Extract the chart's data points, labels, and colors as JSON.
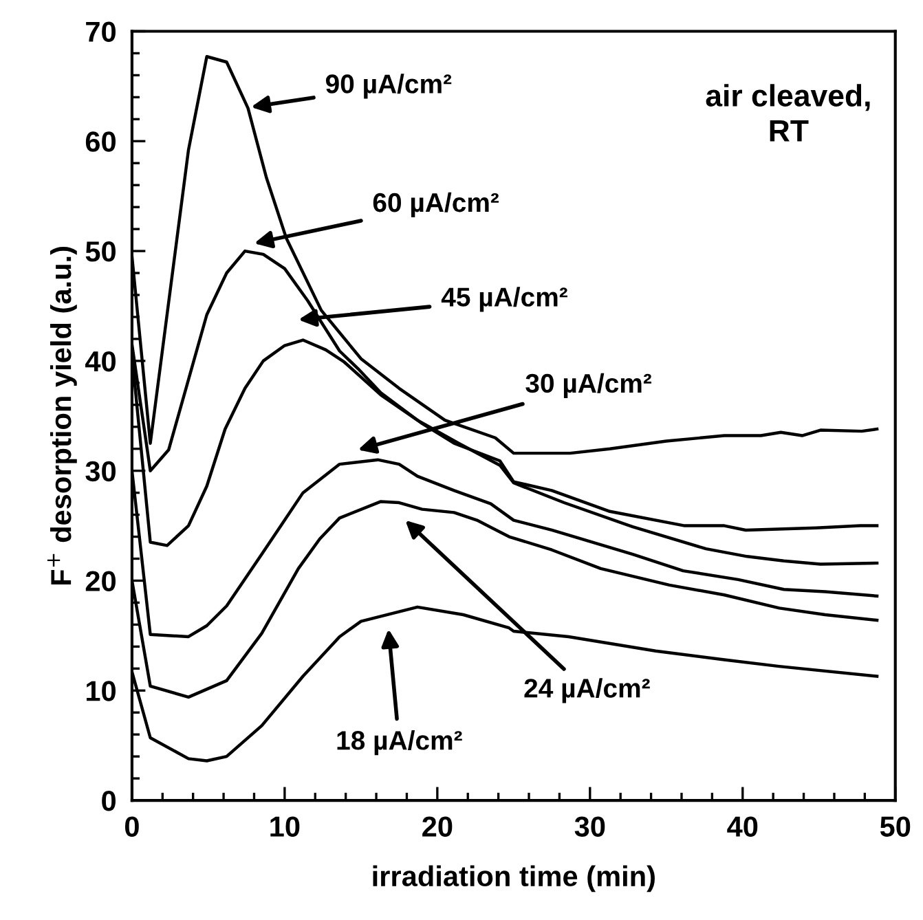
{
  "chart_data": {
    "type": "line",
    "xlabel": "irradiation time (min)",
    "ylabel": "F$^{+}$ desorption yield (a.u.)",
    "xlim": [
      0,
      50
    ],
    "ylim": [
      0,
      70
    ],
    "xticks": [
      0,
      10,
      20,
      30,
      40,
      50
    ],
    "yticks": [
      0,
      10,
      20,
      30,
      40,
      50,
      60,
      70
    ],
    "grid": false,
    "legend": false,
    "marker": "none",
    "line_style": "solid",
    "series": [
      {
        "color": "#000000",
        "x": [
          0,
          1.2,
          3.7,
          4.9,
          6.2,
          7.6,
          8.8,
          10.1,
          12.4,
          15,
          17.5,
          20.5,
          23.8,
          25,
          28.7,
          31.3,
          35,
          38.8,
          41.2,
          42.5,
          43.9,
          45.1,
          47.8,
          48.8
        ],
        "values": [
          49.5,
          32.5,
          59.2,
          67.7,
          67.2,
          63,
          56.7,
          51.2,
          44.6,
          40.2,
          37.5,
          34.6,
          33,
          31.6,
          31.6,
          32,
          32.7,
          33.2,
          33.2,
          33.5,
          33.2,
          33.7,
          33.6,
          33.8
        ]
      },
      {
        "color": "#000000",
        "x": [
          0,
          1.2,
          2.4,
          4.9,
          6.2,
          7.4,
          8.6,
          10,
          11.5,
          13.6,
          14.8,
          16.3,
          19,
          21.1,
          24.1,
          25,
          27.5,
          31.3,
          36.2,
          38.8,
          40.2,
          44.8,
          47.7,
          48.8
        ],
        "values": [
          41.5,
          30,
          31.9,
          44.2,
          48,
          50,
          49.7,
          48.4,
          45.5,
          40.9,
          39.3,
          37.1,
          34.3,
          32.5,
          30.9,
          29,
          28.2,
          26.3,
          25,
          25,
          24.6,
          24.8,
          25,
          25
        ]
      },
      {
        "color": "#000000",
        "x": [
          0,
          1.2,
          2.3,
          3.7,
          4.9,
          6.1,
          7.4,
          8.6,
          10,
          11.2,
          12.7,
          13.9,
          16.3,
          18.7,
          21.4,
          24.1,
          25,
          28.3,
          32.8,
          37.6,
          40.3,
          42.7,
          45.1,
          48.8
        ],
        "values": [
          40.5,
          23.5,
          23.2,
          25,
          28.6,
          33.8,
          37.5,
          40,
          41.4,
          41.9,
          41,
          39.9,
          36.9,
          34.6,
          32.5,
          30.5,
          28.9,
          27.1,
          24.9,
          22.9,
          22.2,
          21.8,
          21.5,
          21.6
        ]
      },
      {
        "color": "#000000",
        "x": [
          0,
          1.2,
          3.7,
          4.9,
          6.2,
          8.5,
          11.2,
          13.6,
          16.1,
          17.5,
          18.7,
          21.1,
          23.5,
          25,
          27.5,
          32.8,
          36.1,
          39.7,
          42.7,
          45.4,
          48.8
        ],
        "values": [
          30,
          15.1,
          14.9,
          15.9,
          17.7,
          22.4,
          28,
          30.6,
          31,
          30.6,
          29.5,
          28.2,
          27,
          25.5,
          24.6,
          22.4,
          20.9,
          20.1,
          19.2,
          19,
          18.6
        ]
      },
      {
        "color": "#000000",
        "x": [
          0,
          1.2,
          3.7,
          6.2,
          8.5,
          10.9,
          12.3,
          13.6,
          16.3,
          17.5,
          19,
          21.1,
          22.6,
          24.7,
          27.5,
          30.7,
          35.2,
          38.8,
          42.4,
          45.4,
          48.8
        ],
        "values": [
          20,
          10.4,
          9.4,
          10.9,
          15.2,
          21.1,
          23.8,
          25.7,
          27.2,
          27.1,
          26.5,
          26.2,
          25.5,
          24,
          22.8,
          21.1,
          19.6,
          18.7,
          17.5,
          16.9,
          16.4
        ]
      },
      {
        "color": "#000000",
        "x": [
          0,
          1.2,
          3.7,
          4.9,
          6.2,
          8.5,
          11.2,
          13.6,
          15,
          18.7,
          21.7,
          24.7,
          25,
          28.6,
          34.3,
          38.8,
          42.4,
          48.8
        ],
        "values": [
          11.7,
          5.7,
          3.8,
          3.6,
          4,
          6.8,
          11.3,
          14.9,
          16.3,
          17.6,
          16.9,
          15.7,
          15.4,
          14.9,
          13.6,
          12.8,
          12.2,
          11.3
        ]
      }
    ],
    "annotations": [
      "90 µA/cm²",
      "60 µA/cm²",
      "45 µA/cm²",
      "30 µA/cm²",
      "24 µA/cm²",
      "18 µA/cm²",
      "air cleaved,\nRT"
    ]
  }
}
